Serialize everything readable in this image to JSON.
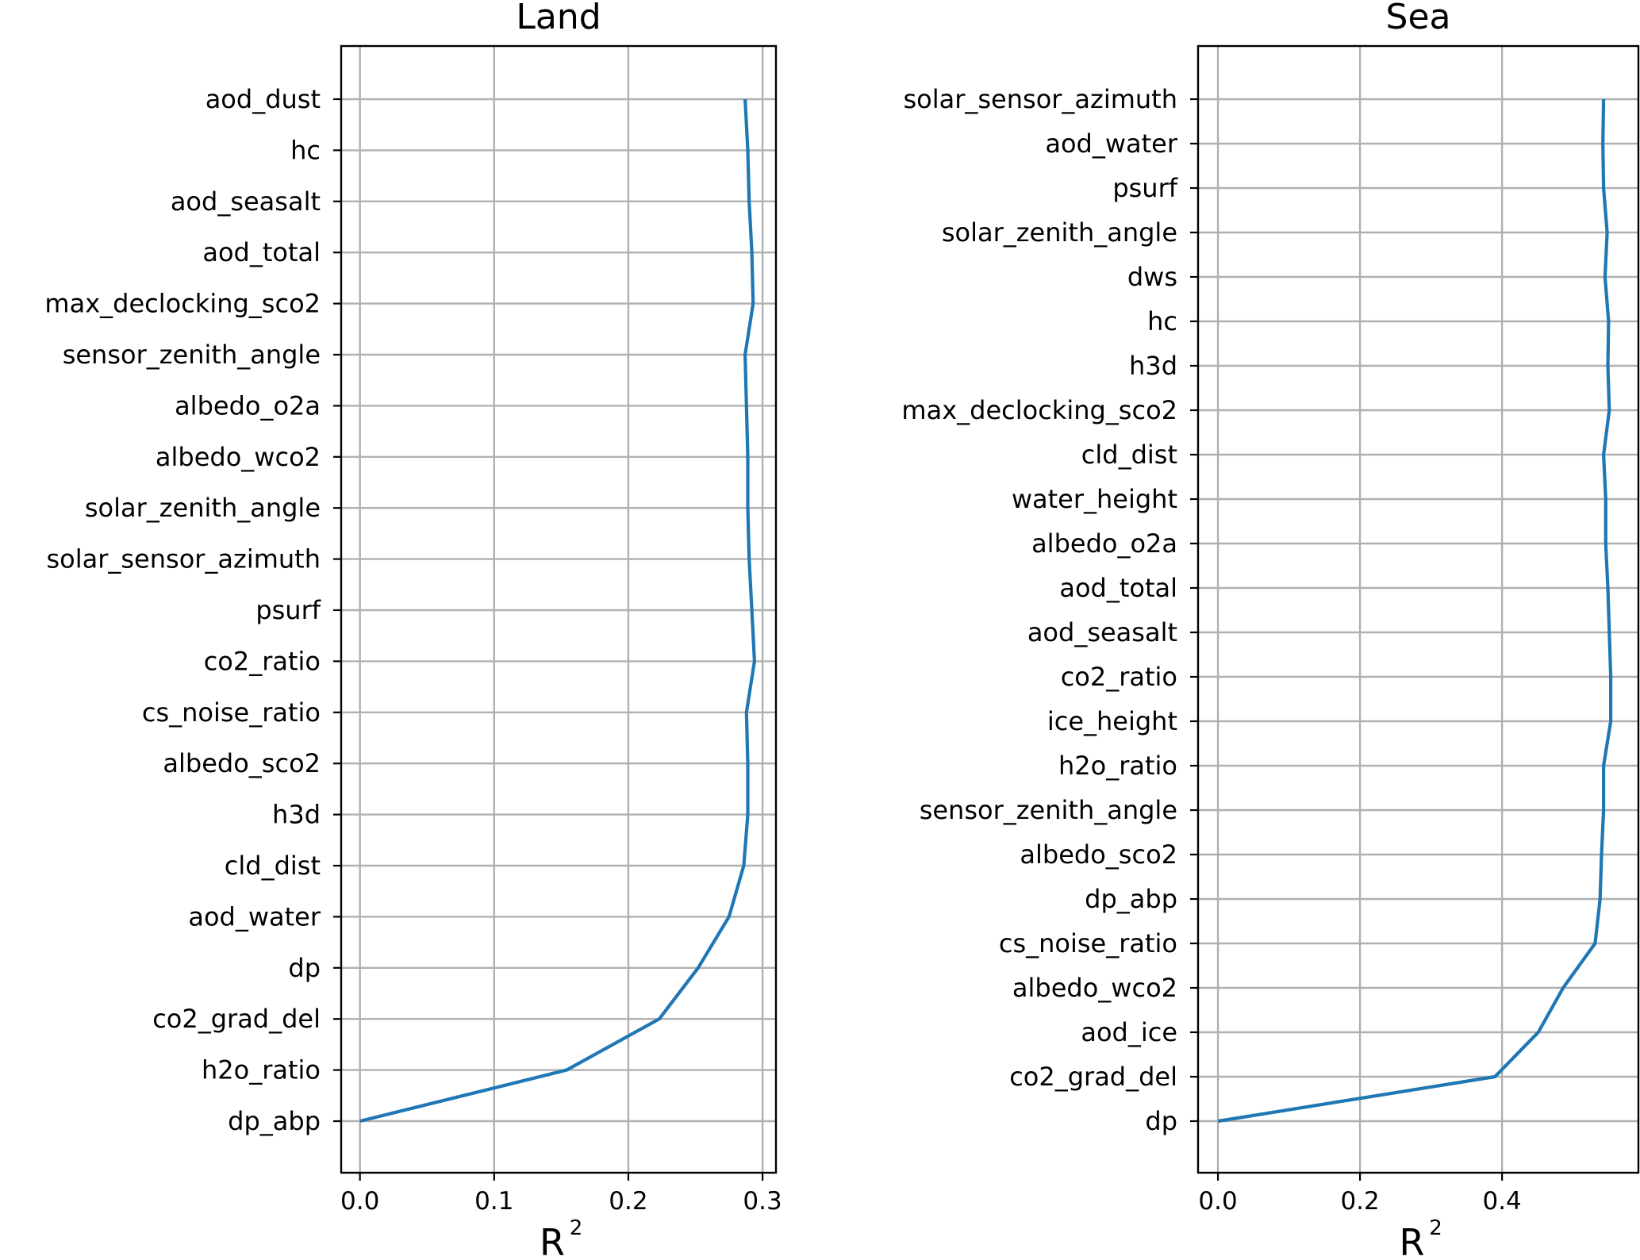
{
  "chart_data": [
    {
      "type": "line",
      "title": "Land",
      "xlabel": "R",
      "xlabel_superscript": "2",
      "xlim": [
        -0.014,
        0.31
      ],
      "xticks": [
        0.0,
        0.1,
        0.2,
        0.3
      ],
      "xtick_labels": [
        "0.0",
        "0.1",
        "0.2",
        "0.3"
      ],
      "grid": true,
      "line_color": "#1f77b4",
      "categories": [
        "aod_dust",
        "hc",
        "aod_seasalt",
        "aod_total",
        "max_declocking_sco2",
        "sensor_zenith_angle",
        "albedo_o2a",
        "albedo_wco2",
        "solar_zenith_angle",
        "solar_sensor_azimuth",
        "psurf",
        "co2_ratio",
        "cs_noise_ratio",
        "albedo_sco2",
        "h3d",
        "cld_dist",
        "aod_water",
        "dp",
        "co2_grad_del",
        "h2o_ratio",
        "dp_abp"
      ],
      "values": [
        0.287,
        0.289,
        0.29,
        0.292,
        0.293,
        0.287,
        0.288,
        0.289,
        0.289,
        0.29,
        0.292,
        0.294,
        0.288,
        0.289,
        0.289,
        0.286,
        0.275,
        0.252,
        0.223,
        0.154,
        0.0
      ]
    },
    {
      "type": "line",
      "title": "Sea",
      "xlabel": "R",
      "xlabel_superscript": "2",
      "xlim": [
        -0.028,
        0.592
      ],
      "xticks": [
        0.0,
        0.2,
        0.4
      ],
      "xtick_labels": [
        "0.0",
        "0.2",
        "0.4"
      ],
      "grid": true,
      "line_color": "#1f77b4",
      "categories": [
        "solar_sensor_azimuth",
        "aod_water",
        "psurf",
        "solar_zenith_angle",
        "dws",
        "hc",
        "h3d",
        "max_declocking_sco2",
        "cld_dist",
        "water_height",
        "albedo_o2a",
        "aod_total",
        "aod_seasalt",
        "co2_ratio",
        "ice_height",
        "h2o_ratio",
        "sensor_zenith_angle",
        "albedo_sco2",
        "dp_abp",
        "cs_noise_ratio",
        "albedo_wco2",
        "aod_ice",
        "co2_grad_del",
        "dp"
      ],
      "values": [
        0.543,
        0.542,
        0.543,
        0.548,
        0.545,
        0.55,
        0.549,
        0.551,
        0.543,
        0.546,
        0.546,
        0.549,
        0.551,
        0.553,
        0.553,
        0.543,
        0.543,
        0.54,
        0.538,
        0.531,
        0.486,
        0.451,
        0.39,
        0.0
      ]
    }
  ]
}
